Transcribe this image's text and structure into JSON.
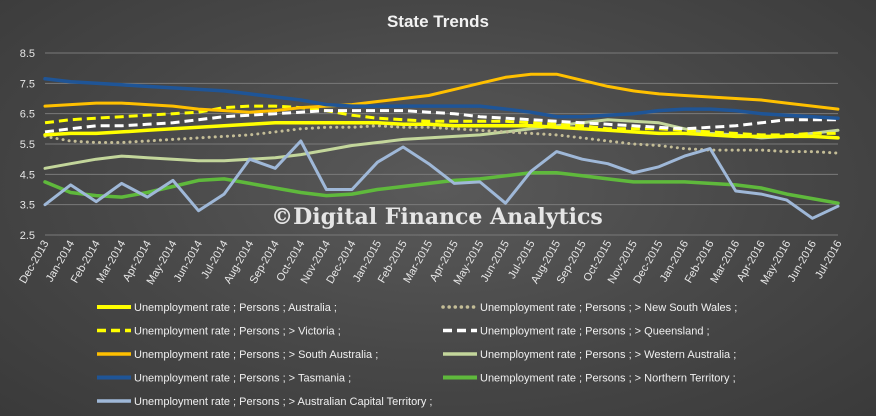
{
  "chart_data": {
    "type": "line",
    "title": "State Trends",
    "watermark": "©Digital Finance Analytics",
    "xlabel": "",
    "ylabel": "",
    "ylim": [
      2.5,
      8.5
    ],
    "yticks": [
      "2.5",
      "3.5",
      "4.5",
      "5.5",
      "6.5",
      "7.5",
      "8.5"
    ],
    "grid": true,
    "legend_position": "bottom",
    "categories": [
      "Dec-2013",
      "Jan-2014",
      "Feb-2014",
      "Mar-2014",
      "Apr-2014",
      "May-2014",
      "Jun-2014",
      "Jul-2014",
      "Aug-2014",
      "Sep-2014",
      "Oct-2014",
      "Nov-2014",
      "Dec-2014",
      "Jan-2015",
      "Feb-2015",
      "Mar-2015",
      "Apr-2015",
      "May-2015",
      "Jun-2015",
      "Jul-2015",
      "Aug-2015",
      "Sep-2015",
      "Oct-2015",
      "Nov-2015",
      "Dec-2015",
      "Jan-2016",
      "Feb-2016",
      "Mar-2016",
      "Apr-2016",
      "May-2016",
      "Jun-2016",
      "Jul-2016"
    ],
    "series": [
      {
        "name": "Unemployment rate ; Persons ; Australia ;",
        "color": "#ffff00",
        "dash": "solid",
        "width": 3.5,
        "values": [
          5.8,
          5.85,
          5.85,
          5.9,
          5.95,
          6.0,
          6.05,
          6.1,
          6.15,
          6.2,
          6.2,
          6.2,
          6.2,
          6.2,
          6.15,
          6.15,
          6.1,
          6.1,
          6.1,
          6.1,
          6.05,
          6.0,
          5.95,
          5.9,
          5.85,
          5.85,
          5.8,
          5.75,
          5.75,
          5.75,
          5.75,
          5.7
        ]
      },
      {
        "name": "Unemployment rate ; Persons ; > New South Wales ;",
        "color": "#c4bd97",
        "dash": "dot",
        "width": 3,
        "values": [
          5.75,
          5.6,
          5.55,
          5.55,
          5.6,
          5.65,
          5.7,
          5.75,
          5.8,
          5.9,
          6.0,
          6.05,
          6.05,
          6.1,
          6.05,
          6.05,
          6.0,
          5.95,
          5.9,
          5.85,
          5.8,
          5.7,
          5.6,
          5.5,
          5.45,
          5.35,
          5.3,
          5.3,
          5.3,
          5.25,
          5.25,
          5.2
        ]
      },
      {
        "name": "Unemployment rate ; Persons ; > Victoria ;",
        "color": "#ffff00",
        "dash": "dash",
        "width": 3,
        "values": [
          6.2,
          6.3,
          6.35,
          6.4,
          6.45,
          6.5,
          6.55,
          6.7,
          6.75,
          6.75,
          6.7,
          6.6,
          6.45,
          6.35,
          6.3,
          6.25,
          6.25,
          6.25,
          6.25,
          6.2,
          6.15,
          6.1,
          6.0,
          6.0,
          6.0,
          5.95,
          5.9,
          5.85,
          5.8,
          5.8,
          5.85,
          5.85
        ]
      },
      {
        "name": "Unemployment rate ; Persons ; > Queensland ;",
        "color": "#ffffff",
        "dash": "dash",
        "width": 3,
        "values": [
          5.9,
          6.0,
          6.1,
          6.1,
          6.15,
          6.2,
          6.3,
          6.4,
          6.45,
          6.5,
          6.55,
          6.6,
          6.6,
          6.6,
          6.6,
          6.55,
          6.5,
          6.4,
          6.35,
          6.3,
          6.25,
          6.2,
          6.15,
          6.1,
          6.05,
          6.0,
          6.05,
          6.1,
          6.2,
          6.3,
          6.3,
          6.3
        ]
      },
      {
        "name": "Unemployment rate ; Persons ; > South Australia ;",
        "color": "#ffc000",
        "dash": "solid",
        "width": 3,
        "values": [
          6.75,
          6.8,
          6.85,
          6.85,
          6.8,
          6.75,
          6.65,
          6.6,
          6.55,
          6.6,
          6.7,
          6.75,
          6.8,
          6.9,
          7.0,
          7.1,
          7.3,
          7.5,
          7.7,
          7.8,
          7.8,
          7.6,
          7.4,
          7.25,
          7.15,
          7.1,
          7.05,
          7.0,
          6.95,
          6.85,
          6.75,
          6.65
        ]
      },
      {
        "name": "Unemployment rate ; Persons ; > Western Australia ;",
        "color": "#c3d69b",
        "dash": "solid",
        "width": 3,
        "values": [
          4.7,
          4.85,
          5.0,
          5.1,
          5.05,
          5.0,
          4.95,
          4.95,
          5.0,
          5.05,
          5.15,
          5.3,
          5.45,
          5.55,
          5.65,
          5.7,
          5.75,
          5.8,
          5.9,
          6.0,
          6.1,
          6.2,
          6.3,
          6.25,
          6.2,
          6.0,
          5.85,
          5.8,
          5.7,
          5.75,
          5.85,
          5.95
        ]
      },
      {
        "name": "Unemployment rate ; Persons ; > Tasmania ;",
        "color": "#1f5597",
        "dash": "solid",
        "width": 3.5,
        "values": [
          7.65,
          7.55,
          7.5,
          7.45,
          7.4,
          7.35,
          7.3,
          7.25,
          7.15,
          7.05,
          6.95,
          6.8,
          6.75,
          6.75,
          6.75,
          6.75,
          6.75,
          6.75,
          6.65,
          6.55,
          6.4,
          6.4,
          6.45,
          6.5,
          6.6,
          6.65,
          6.65,
          6.6,
          6.5,
          6.45,
          6.4,
          6.35
        ]
      },
      {
        "name": "Unemployment rate ; Persons ; > Northern Territory ;",
        "color": "#5fb93c",
        "dash": "solid",
        "width": 3.5,
        "values": [
          4.25,
          3.9,
          3.8,
          3.75,
          3.9,
          4.1,
          4.3,
          4.35,
          4.2,
          4.05,
          3.9,
          3.8,
          3.85,
          4.0,
          4.1,
          4.2,
          4.3,
          4.35,
          4.45,
          4.55,
          4.55,
          4.45,
          4.35,
          4.25,
          4.25,
          4.25,
          4.2,
          4.15,
          4.05,
          3.85,
          3.7,
          3.55
        ]
      },
      {
        "name": "Unemployment rate ; Persons ; > Australian Capital Territory ;",
        "color": "#9fb8d8",
        "dash": "solid",
        "width": 3,
        "values": [
          3.5,
          4.15,
          3.6,
          4.2,
          3.75,
          4.3,
          3.3,
          3.85,
          5.0,
          4.7,
          5.6,
          4.0,
          4.0,
          4.9,
          5.4,
          4.85,
          4.2,
          4.25,
          3.55,
          4.6,
          5.25,
          5.0,
          4.85,
          4.55,
          4.75,
          5.1,
          5.35,
          3.95,
          3.85,
          3.65,
          3.05,
          3.45
        ]
      }
    ]
  }
}
